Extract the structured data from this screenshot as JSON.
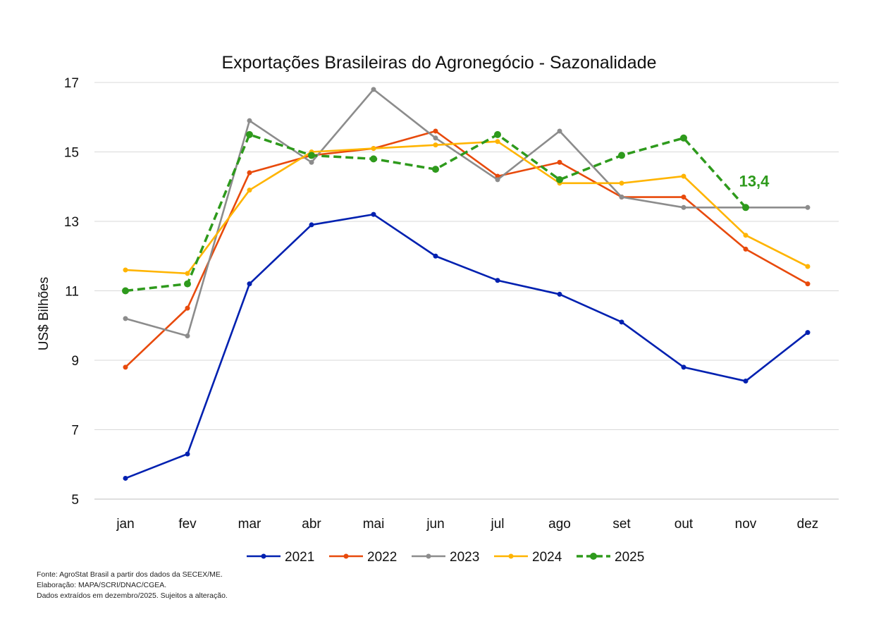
{
  "chart_data": {
    "type": "line",
    "title": "Exportações Brasileiras do Agronegócio - Sazonalidade",
    "xlabel": "",
    "ylabel": "US$ Bilhões",
    "ylim": [
      5,
      17
    ],
    "yticks": [
      5,
      7,
      9,
      11,
      13,
      15,
      17
    ],
    "grid": true,
    "legend_position": "bottom",
    "categories": [
      "jan",
      "fev",
      "mar",
      "abr",
      "mai",
      "jun",
      "jul",
      "ago",
      "set",
      "out",
      "nov",
      "dez"
    ],
    "series": [
      {
        "name": "2021",
        "color": "#0020b0",
        "dashed": false,
        "values": [
          5.6,
          6.3,
          11.2,
          12.9,
          13.2,
          12.0,
          11.3,
          10.9,
          10.1,
          8.8,
          8.4,
          9.8
        ]
      },
      {
        "name": "2022",
        "color": "#e84a0c",
        "dashed": false,
        "values": [
          8.8,
          10.5,
          14.4,
          14.9,
          15.1,
          15.6,
          14.3,
          14.7,
          13.7,
          13.7,
          12.2,
          11.2
        ]
      },
      {
        "name": "2023",
        "color": "#8c8c8c",
        "dashed": false,
        "values": [
          10.2,
          9.7,
          15.9,
          14.7,
          16.8,
          15.4,
          14.2,
          15.6,
          13.7,
          13.4,
          13.4,
          13.4
        ]
      },
      {
        "name": "2024",
        "color": "#ffb400",
        "dashed": false,
        "values": [
          11.6,
          11.5,
          13.9,
          15.0,
          15.1,
          15.2,
          15.3,
          14.1,
          14.1,
          14.3,
          12.6,
          11.7
        ]
      },
      {
        "name": "2025",
        "color": "#2e9a1c",
        "dashed": true,
        "values": [
          11.0,
          11.2,
          15.5,
          14.9,
          14.8,
          14.5,
          15.5,
          14.2,
          14.9,
          15.4,
          13.4,
          null
        ]
      }
    ],
    "annotations": [
      {
        "series": "2025",
        "category": "nov",
        "text": "13,4"
      }
    ]
  },
  "footer": {
    "line1": "Fonte: AgroStat Brasil a partir dos dados da SECEX/ME.",
    "line2": "Elaboração: MAPA/SCRI/DNAC/CGEA.",
    "line3": "Dados extraídos em dezembro/2025. Sujeitos a alteração."
  }
}
